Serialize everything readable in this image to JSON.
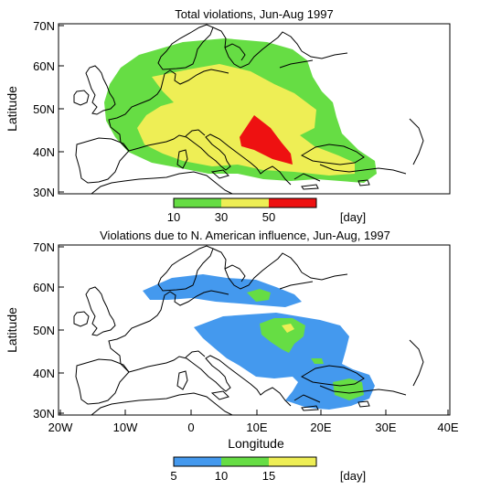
{
  "top_panel": {
    "title": "Total violations, Jun-Aug 1997",
    "ylabel": "Latitude",
    "yticks": [
      "70N",
      "60N",
      "50N",
      "40N",
      "30N"
    ],
    "colorbar": {
      "ticks": [
        "10",
        "30",
        "50"
      ],
      "unit": "[day]",
      "colors": [
        "#66dd44",
        "#eeee55",
        "#ee1111"
      ]
    }
  },
  "bottom_panel": {
    "title": "Violations due to N. American influence, Jun-Aug, 1997",
    "ylabel": "Latitude",
    "xlabel": "Longitude",
    "yticks": [
      "70N",
      "60N",
      "50N",
      "40N",
      "30N"
    ],
    "xticks": [
      "20W",
      "10W",
      "0",
      "10E",
      "20E",
      "30E",
      "40E"
    ],
    "colorbar": {
      "ticks": [
        "5",
        "10",
        "15"
      ],
      "unit": "[day]",
      "colors": [
        "#4499ee",
        "#66dd44",
        "#eeee55"
      ]
    }
  },
  "colors": {
    "coastline": "#000000",
    "frame": "#000000"
  }
}
